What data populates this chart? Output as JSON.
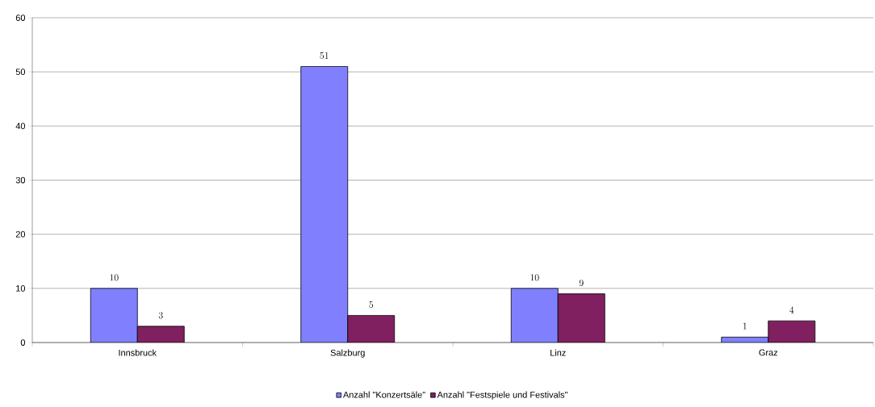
{
  "chart_data": {
    "type": "bar",
    "categories": [
      "Innsbruck",
      "Salzburg",
      "Linz",
      "Graz"
    ],
    "series": [
      {
        "name": "Anzahl \"Konzertsäle\"",
        "color": "#8080ff",
        "values": [
          10,
          51,
          10,
          1
        ]
      },
      {
        "name": "Anzahl \"Festspiele und Festivals\"",
        "color": "#802060",
        "values": [
          3,
          5,
          9,
          4
        ]
      }
    ],
    "ylim": [
      0,
      60
    ],
    "yticks": [
      0,
      10,
      20,
      30,
      40,
      50,
      60
    ],
    "grid": "y",
    "legend": "bottom",
    "data_labels": true
  }
}
